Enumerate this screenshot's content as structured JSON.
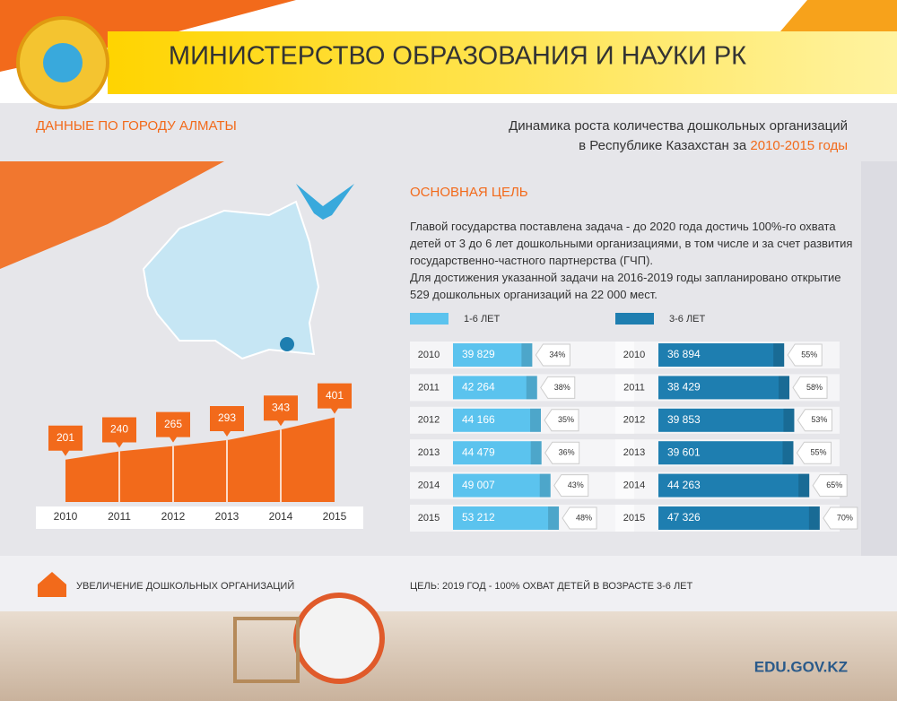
{
  "header": {
    "title": "МИНИСТЕРСТВО ОБРАЗОВАНИЯ И НАУКИ РК"
  },
  "city_label": "ДАННЫЕ ПО ГОРОДУ АЛМАТЫ",
  "subtitle": {
    "line1": "Динамика роста количества дошкольных организаций",
    "line2": "в Республике Казахстан за",
    "years": "2010-2015 годы"
  },
  "goal": {
    "title": "ОСНОВНАЯ ЦЕЛЬ",
    "paragraphs": [
      "Главой государства поставлена задача - до 2020 года достичь 100%-го охвата детей от 3 до 6 лет дошкольными организациями, в том числе и за счет развития государственно-частного партнерства (ГЧП).",
      "Для достижения указанной задачи на 2016-2019 годы запланировано открытие 529 дошкольных организаций на 22 000 мест."
    ]
  },
  "chart_data": [
    {
      "type": "area",
      "caption": "УВЕЛИЧЕНИЕ ДОШКОЛЬНЫХ ОРГАНИЗАЦИЙ",
      "categories": [
        "2010",
        "2011",
        "2012",
        "2013",
        "2014",
        "2015"
      ],
      "values": [
        201,
        240,
        265,
        293,
        343,
        401
      ],
      "ylim": [
        0,
        850
      ],
      "color": "#f26a1b"
    },
    {
      "type": "hbar",
      "categories": [
        "2010",
        "2011",
        "2012",
        "2013",
        "2014",
        "2015"
      ],
      "xlim": [
        0,
        64000
      ],
      "series": [
        {
          "name": "1-6 ЛЕТ",
          "color": "#5bc3ee",
          "values": [
            39829,
            42264,
            44166,
            44479,
            49007,
            53212
          ],
          "value_labels": [
            "39 829",
            "42 264",
            "44 166",
            "44 479",
            "49 007",
            "53 212"
          ]
        }
      ],
      "coverage": {
        "values": [
          34,
          38,
          35,
          36,
          43,
          48
        ],
        "value_labels": [
          "34%",
          "38%",
          "35%",
          "36%",
          "43%",
          "48%"
        ]
      }
    },
    {
      "type": "hbar",
      "categories": [
        "2010",
        "2011",
        "2012",
        "2013",
        "2014",
        "2015"
      ],
      "xlim": [
        0,
        50000
      ],
      "series": [
        {
          "name": "3-6 ЛЕТ",
          "color": "#1e7eb0",
          "values": [
            36894,
            38429,
            39853,
            39601,
            44263,
            47326
          ],
          "value_labels": [
            "36 894",
            "38 429",
            "39 853",
            "39 601",
            "44 263",
            "47 326"
          ]
        }
      ],
      "coverage": {
        "values": [
          55,
          58,
          53,
          55,
          65,
          70
        ],
        "value_labels": [
          "55%",
          "58%",
          "53%",
          "55%",
          "65%",
          "70%"
        ]
      }
    }
  ],
  "footer": {
    "goal_text": "ЦЕЛЬ: 2019 ГОД - 100% ОХВАТ ДЕТЕЙ В ВОЗРАСТЕ 3-6 ЛЕТ",
    "site": "EDU.GOV.KZ"
  }
}
